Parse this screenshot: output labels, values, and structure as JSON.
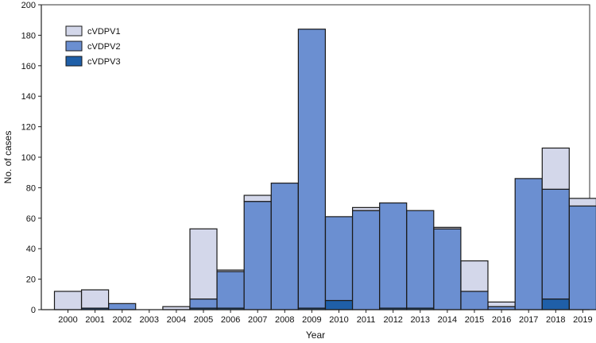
{
  "chart_data": {
    "type": "bar",
    "stacked": true,
    "title": "",
    "xlabel": "Year",
    "ylabel": "No. of cases",
    "ylim": [
      0,
      200
    ],
    "yticks": [
      0,
      20,
      40,
      60,
      80,
      100,
      120,
      140,
      160,
      180,
      200
    ],
    "grid": false,
    "legend_position": "top-left",
    "categories": [
      "2000",
      "2001",
      "2002",
      "2003",
      "2004",
      "2005",
      "2006",
      "2007",
      "2008",
      "2009",
      "2010",
      "2011",
      "2012",
      "2013",
      "2014",
      "2015",
      "2016",
      "2017",
      "2018",
      "2019"
    ],
    "series": [
      {
        "name": "cVDPV3",
        "color": "#1f5fa8",
        "values": [
          0,
          1,
          0,
          0,
          0,
          1,
          1,
          0,
          0,
          1,
          6,
          0,
          1,
          1,
          0,
          0,
          0,
          0,
          7,
          0
        ]
      },
      {
        "name": "cVDPV2",
        "color": "#6b8fd1",
        "values": [
          0,
          0,
          4,
          0,
          0,
          6,
          24,
          71,
          83,
          183,
          55,
          65,
          69,
          64,
          53,
          12,
          2,
          86,
          72,
          68
        ]
      },
      {
        "name": "cVDPV1",
        "color": "#d3d7ea",
        "values": [
          12,
          12,
          0,
          0,
          2,
          46,
          1,
          4,
          0,
          0,
          0,
          2,
          0,
          0,
          1,
          20,
          3,
          0,
          27,
          5
        ]
      }
    ]
  }
}
